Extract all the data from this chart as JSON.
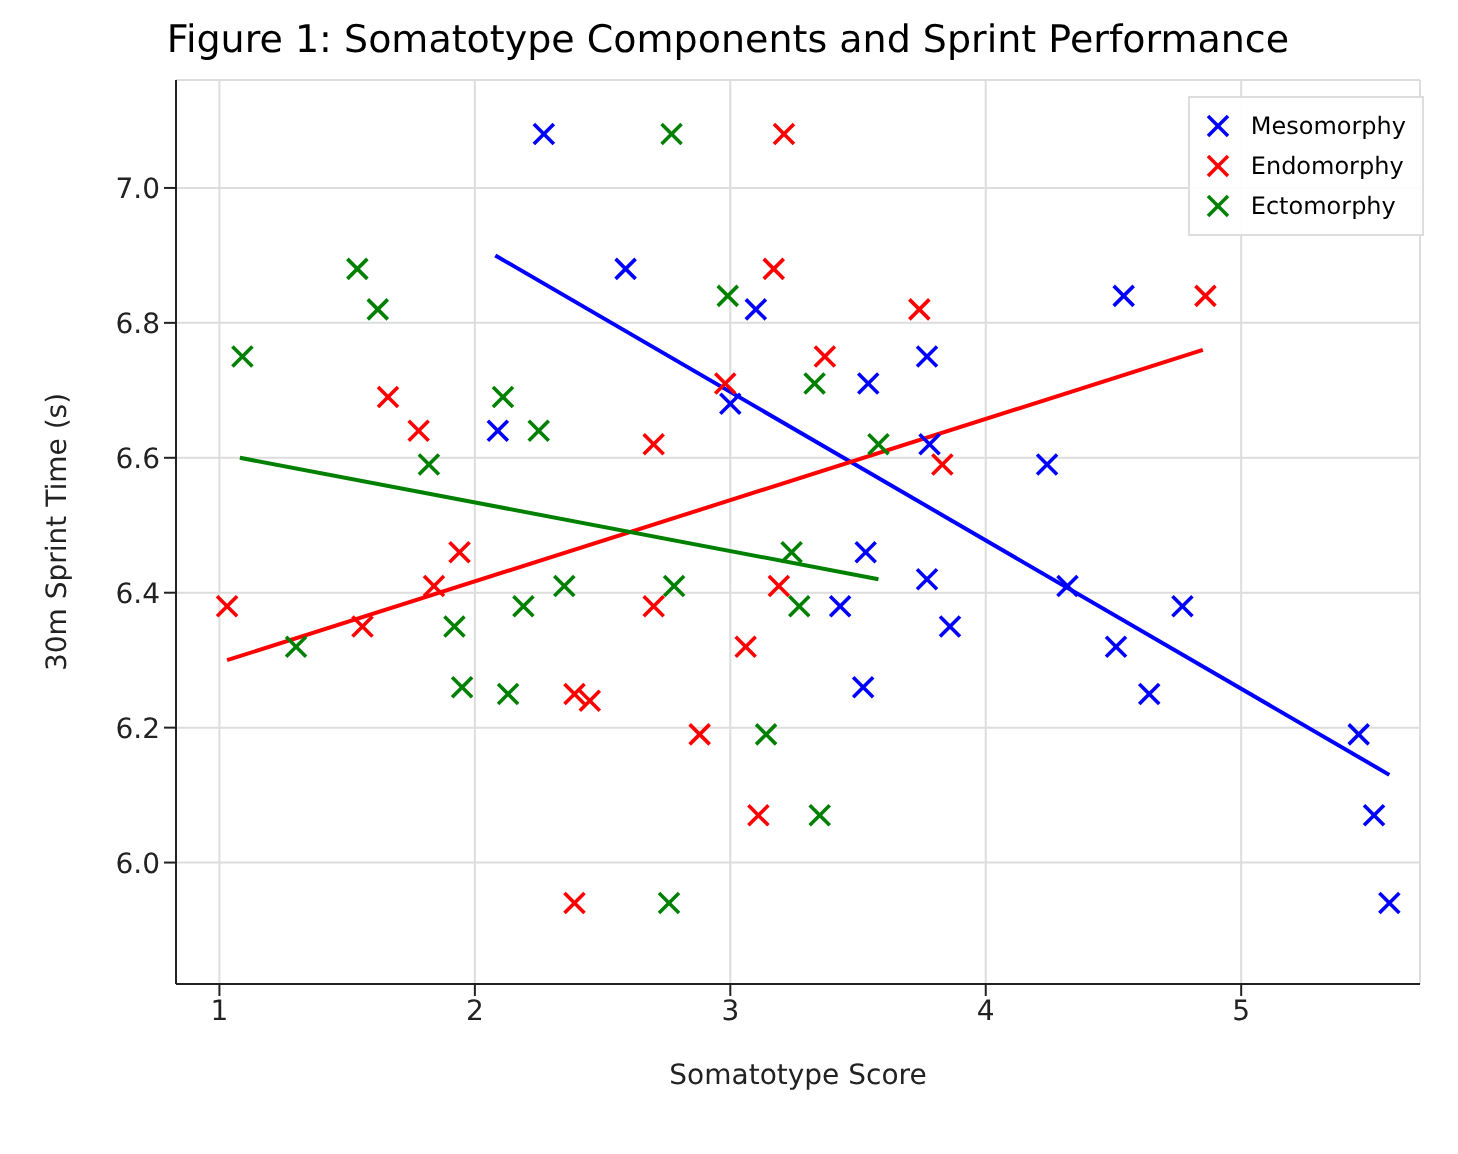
{
  "chart_data": {
    "type": "scatter",
    "title": "Figure 1: Somatotype Components and Sprint Performance",
    "xlabel": "Somatotype Score",
    "ylabel": "30m Sprint Time (s)",
    "xlim": [
      0.83,
      5.7
    ],
    "xticks": [
      1,
      2,
      3,
      4,
      5
    ],
    "ylim": [
      5.82,
      7.16
    ],
    "yticks": [
      {
        "value": 6,
        "label": "6.0"
      },
      6.2,
      6.4,
      6.6,
      6.8,
      {
        "value": 7,
        "label": "7.0"
      }
    ],
    "grid": true,
    "legend": "top right",
    "series": [
      {
        "name": "Mesomorphy",
        "color": "#0000ff",
        "marker": "cross",
        "x": [
          2.27,
          2.59,
          3.1,
          4.54,
          3.77,
          3.54,
          3.0,
          2.09,
          3.78,
          4.24,
          3.53,
          3.77,
          3.43,
          4.32,
          3.86,
          4.77,
          4.51,
          3.52,
          4.64,
          5.46,
          5.52,
          5.58
        ],
        "values": [
          7.08,
          6.88,
          6.82,
          6.84,
          6.75,
          6.71,
          6.68,
          6.64,
          6.62,
          6.59,
          6.46,
          6.42,
          6.38,
          6.41,
          6.35,
          6.38,
          6.32,
          6.26,
          6.25,
          6.19,
          6.07,
          5.94
        ]
      },
      {
        "name": "Endomorphy",
        "color": "#ff0000",
        "marker": "cross",
        "x": [
          3.21,
          3.17,
          3.74,
          4.86,
          3.37,
          2.98,
          1.66,
          1.78,
          2.7,
          1.94,
          1.84,
          1.03,
          1.56,
          2.7,
          3.19,
          3.06,
          3.83,
          2.39,
          2.45,
          2.88,
          3.11,
          2.39
        ],
        "values": [
          7.08,
          6.88,
          6.82,
          6.84,
          6.75,
          6.71,
          6.69,
          6.64,
          6.62,
          6.46,
          6.41,
          6.38,
          6.35,
          6.38,
          6.41,
          6.32,
          6.59,
          6.25,
          6.24,
          6.19,
          6.07,
          5.94
        ]
      },
      {
        "name": "Ectomorphy",
        "color": "#008000",
        "marker": "cross",
        "x": [
          2.77,
          1.54,
          1.62,
          1.09,
          2.99,
          3.33,
          2.11,
          2.25,
          1.82,
          3.24,
          2.35,
          2.78,
          2.19,
          1.92,
          1.3,
          1.95,
          2.13,
          3.27,
          3.58,
          3.14,
          2.76,
          3.35
        ],
        "values": [
          7.08,
          6.88,
          6.82,
          6.75,
          6.84,
          6.71,
          6.69,
          6.64,
          6.59,
          6.46,
          6.41,
          6.41,
          6.38,
          6.35,
          6.32,
          6.26,
          6.25,
          6.38,
          6.62,
          6.19,
          5.94,
          6.07
        ]
      },
      {
        "type": "line",
        "color": "#0000ff",
        "x": [
          2.08,
          5.58
        ],
        "values": [
          6.9,
          6.13
        ]
      },
      {
        "type": "line",
        "color": "#ff0000",
        "x": [
          1.03,
          4.85
        ],
        "values": [
          6.3,
          6.76
        ]
      },
      {
        "type": "line",
        "color": "#008000",
        "x": [
          1.08,
          3.58
        ],
        "values": [
          6.6,
          6.42
        ]
      }
    ]
  }
}
